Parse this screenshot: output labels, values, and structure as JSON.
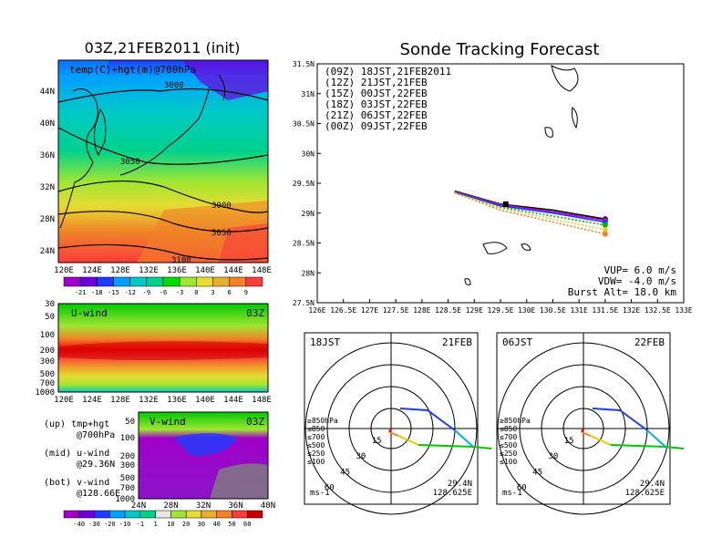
{
  "left_panel": {
    "title": "03Z,21FEB2011 (init)",
    "map_label": "temp(C)+hgt(m)@700hPa",
    "contours": [
      "3000",
      "3050",
      "3000",
      "3050",
      "3100"
    ],
    "lat_ticks": [
      "44N",
      "40N",
      "36N",
      "32N",
      "28N",
      "24N"
    ],
    "lon_ticks": [
      "120E",
      "124E",
      "128E",
      "132E",
      "136E",
      "140E",
      "144E",
      "148E"
    ],
    "temp_colorbar": [
      "-21",
      "-18",
      "-15",
      "-12",
      "-9",
      "-6",
      "-3",
      "0",
      "3",
      "6",
      "9"
    ],
    "temp_colors": [
      "#a000c8",
      "#6e00dc",
      "#1e3cff",
      "#00a0ff",
      "#00c8c8",
      "#00d28c",
      "#00dc00",
      "#a0e632",
      "#e6dc32",
      "#e6af2d",
      "#f08228",
      "#fa3c3c"
    ]
  },
  "uwind_panel": {
    "label": "U-wind",
    "time": "03Z",
    "p_ticks": [
      "30",
      "50",
      "100",
      "200",
      "300",
      "500",
      "700",
      "1000"
    ],
    "lon_ticks": [
      "120E",
      "124E",
      "128E",
      "132E",
      "136E",
      "140E",
      "144E",
      "148E"
    ]
  },
  "vwind_panel": {
    "label": "V-wind",
    "time": "03Z",
    "p_ticks": [
      "50",
      "100",
      "200",
      "300",
      "500",
      "700",
      "1000"
    ],
    "lat_ticks": [
      "24N",
      "28N",
      "32N",
      "36N",
      "40N"
    ],
    "colorbar": [
      "-40",
      "-30",
      "-20",
      "-10",
      "-1",
      "1",
      "10",
      "20",
      "30",
      "40",
      "50",
      "60"
    ],
    "colors": [
      "#a000c8",
      "#6e00dc",
      "#1e3cff",
      "#00a0ff",
      "#00c8c8",
      "#00d28c",
      "#e6e6e6",
      "#a0e632",
      "#e6dc32",
      "#e6af2d",
      "#f08228",
      "#fa3c3c",
      "#c80000"
    ]
  },
  "legend_notes": {
    "up_1": "(up) tmp+hgt",
    "up_2": "@700hPa",
    "mid_1": "(mid) u-wind",
    "mid_2": "@29.36N",
    "bot_1": "(bot) v-wind",
    "bot_2": "@128.66E"
  },
  "track_panel": {
    "title": "Sonde Tracking Forecast",
    "runs": [
      {
        "label": "(09Z)  18JST,21FEB2011",
        "color": "#000000"
      },
      {
        "label": "(12Z)  21JST,21FEB",
        "color": "#c800c8"
      },
      {
        "label": "(15Z)  00JST,22FEB",
        "color": "#1e3cff"
      },
      {
        "label": "(18Z)  03JST,22FEB",
        "color": "#00b400"
      },
      {
        "label": "(21Z)  06JST,22FEB",
        "color": "#f0c832"
      },
      {
        "label": "(00Z)  09JST,22FEB",
        "color": "#f08228"
      }
    ],
    "params_1": "VUP=  6.0 m/s",
    "params_2": "VDW= -4.0 m/s",
    "params_3": "Burst Alt= 18.0 km",
    "lat_ticks": [
      "31.5N",
      "31N",
      "30.5N",
      "30N",
      "29.5N",
      "29N",
      "28.5N",
      "28N",
      "27.5N"
    ],
    "lon_ticks": [
      "126E",
      "126.5E",
      "127E",
      "127.5E",
      "128E",
      "128.5E",
      "129E",
      "129.5E",
      "130E",
      "130.5E",
      "131E",
      "131.5E",
      "132E",
      "132.5E",
      "133E"
    ]
  },
  "chart_data": [
    {
      "type": "line",
      "title": "Sonde Tracking Forecast",
      "xlim": [
        126,
        133
      ],
      "ylim": [
        27.5,
        31.5
      ],
      "series": [
        {
          "name": "(09Z)  18JST,21FEB2011",
          "x": [
            128.625,
            129.5,
            130.5,
            131.5
          ],
          "y": [
            29.37,
            29.15,
            29.05,
            28.9
          ]
        },
        {
          "name": "(12Z)  21JST,21FEB",
          "x": [
            128.625,
            129.5,
            130.5,
            131.5
          ],
          "y": [
            29.36,
            29.14,
            29.02,
            28.88
          ]
        },
        {
          "name": "(15Z)  00JST,22FEB",
          "x": [
            128.625,
            129.5,
            130.5,
            131.5
          ],
          "y": [
            29.35,
            29.12,
            29.0,
            28.85
          ]
        },
        {
          "name": "(18Z)  03JST,22FEB",
          "x": [
            128.625,
            129.5,
            130.5,
            131.5
          ],
          "y": [
            29.35,
            29.1,
            28.95,
            28.8
          ]
        },
        {
          "name": "(21Z)  06JST,22FEB",
          "x": [
            128.625,
            129.5,
            130.5,
            131.5
          ],
          "y": [
            29.34,
            29.08,
            28.9,
            28.72
          ]
        },
        {
          "name": "(00Z)  09JST,22FEB",
          "x": [
            128.625,
            129.5,
            130.5,
            131.5
          ],
          "y": [
            29.34,
            29.05,
            28.85,
            28.65
          ]
        }
      ]
    }
  ],
  "hodo_left": {
    "time": "18JST",
    "date": "21FEB",
    "levels": [
      "≥850hPa",
      "≤850",
      "≤700",
      "≤500",
      "≤250",
      "≤100"
    ],
    "level_colors": [
      "#fa0000",
      "#f08228",
      "#e6c800",
      "#00c800",
      "#00b4dc",
      "#1e3cff"
    ],
    "rings": [
      "15",
      "30",
      "45",
      "60"
    ],
    "lat": "29.4N",
    "lon": "128.625E",
    "unit": "ms-1"
  },
  "hodo_right": {
    "time": "06JST",
    "date": "22FEB",
    "levels": [
      "≥850hPa",
      "≤850",
      "≤700",
      "≤500",
      "≤250",
      "≤100"
    ],
    "level_colors": [
      "#fa0000",
      "#f08228",
      "#e6c800",
      "#00c800",
      "#00b4dc",
      "#1e3cff"
    ],
    "rings": [
      "15",
      "30",
      "45",
      "60"
    ],
    "lat": "29.4N",
    "lon": "128.625E",
    "unit": "ms-1"
  }
}
